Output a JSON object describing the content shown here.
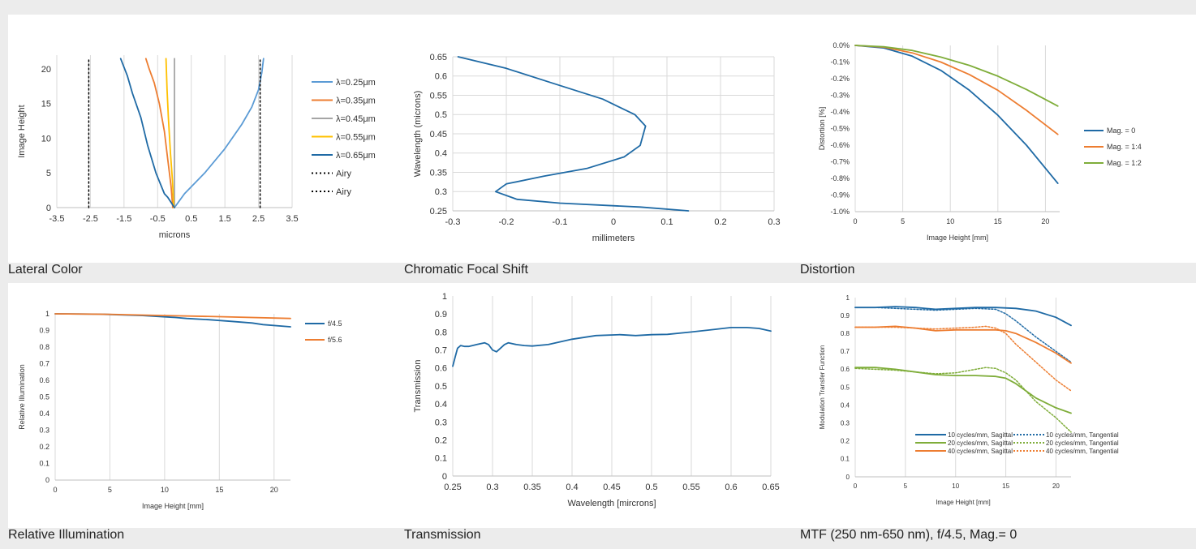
{
  "chart_data": [
    {
      "id": "lateral",
      "type": "line",
      "caption": "Lateral Color",
      "xlabel": "microns",
      "ylabel": "Image Height",
      "xlim": [
        -3.5,
        3.5
      ],
      "ylim": [
        0,
        22
      ],
      "xticks": [
        -3.5,
        -2.5,
        -1.5,
        -0.5,
        0.5,
        1.5,
        2.5,
        3.5
      ],
      "xtick_labels": [
        "-3.5",
        "-2.5",
        "-1.5",
        "-0.5",
        "0.5",
        "1.5",
        "2.5",
        "3.5"
      ],
      "yticks": [
        0,
        5,
        10,
        15,
        20
      ],
      "ytick_labels": [
        "0",
        "5",
        "10",
        "15",
        "20"
      ],
      "grid": "vertical",
      "legend": "right",
      "series": [
        {
          "name": "λ=0.25μm",
          "color": "#5b9bd5",
          "dash": "",
          "x": [
            0.0,
            0.3,
            0.9,
            1.5,
            2.0,
            2.3,
            2.5,
            2.6,
            2.65
          ],
          "y": [
            0,
            2,
            5,
            8.5,
            12,
            14.5,
            17,
            19.5,
            21.5
          ]
        },
        {
          "name": "λ=0.35μm",
          "color": "#ed7d31",
          "dash": "",
          "x": [
            -0.05,
            -0.1,
            -0.2,
            -0.3,
            -0.45,
            -0.6,
            -0.75,
            -0.85
          ],
          "y": [
            0,
            3,
            7,
            11,
            15,
            18,
            20,
            21.5
          ]
        },
        {
          "name": "λ=0.45μm",
          "color": "#a5a5a5",
          "dash": "",
          "x": [
            -0.0,
            -0.0
          ],
          "y": [
            0,
            21.5
          ]
        },
        {
          "name": "λ=0.55μm",
          "color": "#ffc000",
          "dash": "",
          "x": [
            -0.02,
            -0.06,
            -0.12,
            -0.18,
            -0.22,
            -0.25
          ],
          "y": [
            0,
            4,
            8,
            13,
            17,
            21.5
          ]
        },
        {
          "name": "λ=0.65μm",
          "color": "#1f6aa5",
          "dash": "",
          "x": [
            0.0,
            -0.2,
            -0.3,
            -0.55,
            -0.8,
            -1.0,
            -1.25,
            -1.4,
            -1.6
          ],
          "y": [
            0,
            1.5,
            2,
            5,
            9,
            13,
            16.5,
            19,
            21.5
          ]
        },
        {
          "name": "Airy",
          "color": "#000000",
          "dash": "2,3",
          "x": [
            -2.55,
            -2.55
          ],
          "y": [
            0,
            21.5
          ]
        },
        {
          "name": "Airy",
          "color": "#000000",
          "dash": "2,3",
          "x": [
            2.55,
            2.55
          ],
          "y": [
            0,
            21.5
          ]
        }
      ]
    },
    {
      "id": "focal",
      "type": "line",
      "caption": "Chromatic Focal Shift",
      "xlabel": "millimeters",
      "ylabel": "Wavelength (microns)",
      "xlim": [
        -0.3,
        0.3
      ],
      "ylim": [
        0.25,
        0.65
      ],
      "xticks": [
        -0.3,
        -0.2,
        -0.1,
        0,
        0.1,
        0.2,
        0.3
      ],
      "xtick_labels": [
        "-0.3",
        "-0.2",
        "-0.1",
        "0",
        "0.1",
        "0.2",
        "0.3"
      ],
      "yticks": [
        0.25,
        0.3,
        0.35,
        0.4,
        0.45,
        0.5,
        0.55,
        0.6,
        0.65
      ],
      "ytick_labels": [
        "0.25",
        "0.3",
        "0.35",
        "0.4",
        "0.45",
        "0.5",
        "0.55",
        "0.6",
        "0.65"
      ],
      "grid": "both",
      "legend": "none",
      "series": [
        {
          "color": "#1f6aa5",
          "dash": "",
          "x": [
            0.14,
            0.05,
            -0.1,
            -0.18,
            -0.22,
            -0.2,
            -0.13,
            -0.05,
            0.02,
            0.05,
            0.06,
            0.04,
            -0.02,
            -0.11,
            -0.2,
            -0.29
          ],
          "y": [
            0.25,
            0.26,
            0.27,
            0.28,
            0.3,
            0.32,
            0.34,
            0.36,
            0.39,
            0.42,
            0.47,
            0.5,
            0.54,
            0.58,
            0.62,
            0.65
          ]
        }
      ]
    },
    {
      "id": "distortion",
      "type": "line",
      "caption": "Distortion",
      "xlabel": "Image Height [mm]",
      "ylabel": "Distortion [%]",
      "xlim": [
        0,
        21.5
      ],
      "ylim": [
        -1.0,
        0
      ],
      "xticks": [
        0,
        5,
        10,
        15,
        20
      ],
      "xtick_labels": [
        "0",
        "5",
        "10",
        "15",
        "20"
      ],
      "yticks": [
        0,
        -0.1,
        -0.2,
        -0.3,
        -0.4,
        -0.5,
        -0.6,
        -0.7,
        -0.8,
        -0.9,
        -1.0
      ],
      "ytick_labels": [
        "0.0%",
        "-0.1%",
        "-0.2%",
        "-0.3%",
        "-0.4%",
        "-0.5%",
        "-0.6%",
        "-0.7%",
        "-0.8%",
        "-0.9%",
        "-1.0%"
      ],
      "grid": "vertical",
      "legend": "right",
      "series": [
        {
          "name": "Mag. = 0",
          "color": "#1f6aa5",
          "dash": "",
          "x": [
            0,
            3,
            6,
            9,
            12,
            15,
            18,
            21.3
          ],
          "y": [
            0,
            -0.015,
            -0.065,
            -0.15,
            -0.27,
            -0.42,
            -0.6,
            -0.83
          ]
        },
        {
          "name": "Mag. = 1:4",
          "color": "#ed7d31",
          "dash": "",
          "x": [
            0,
            3,
            6,
            9,
            12,
            15,
            18,
            21.3
          ],
          "y": [
            0,
            -0.01,
            -0.045,
            -0.1,
            -0.175,
            -0.27,
            -0.39,
            -0.535
          ]
        },
        {
          "name": "Mag. = 1:2",
          "color": "#7fad3a",
          "dash": "",
          "x": [
            0,
            3,
            6,
            9,
            12,
            15,
            18,
            21.3
          ],
          "y": [
            0,
            -0.008,
            -0.03,
            -0.07,
            -0.12,
            -0.185,
            -0.265,
            -0.365
          ]
        }
      ]
    },
    {
      "id": "illum",
      "type": "line",
      "caption": "Relative Illumination",
      "xlabel": "Image Height [mm]",
      "ylabel": "Relative Illumination",
      "xlim": [
        0,
        21.5
      ],
      "ylim": [
        0,
        1
      ],
      "xticks": [
        0,
        5,
        10,
        15,
        20
      ],
      "xtick_labels": [
        "0",
        "5",
        "10",
        "15",
        "20"
      ],
      "yticks": [
        0,
        0.1,
        0.2,
        0.3,
        0.4,
        0.5,
        0.6,
        0.7,
        0.8,
        0.9,
        1
      ],
      "ytick_labels": [
        "0",
        "0.1",
        "0.2",
        "0.3",
        "0.4",
        "0.5",
        "0.6",
        "0.7",
        "0.8",
        "0.9",
        "1"
      ],
      "grid": "vertical",
      "legend": "right",
      "series": [
        {
          "name": "f/4.5",
          "color": "#1f6aa5",
          "dash": "",
          "x": [
            0,
            4,
            8,
            10,
            11,
            12,
            14,
            16,
            18,
            19,
            21.5
          ],
          "y": [
            1,
            0.998,
            0.99,
            0.982,
            0.978,
            0.972,
            0.965,
            0.955,
            0.945,
            0.935,
            0.922
          ]
        },
        {
          "name": "f/5.6",
          "color": "#ed7d31",
          "dash": "",
          "x": [
            0,
            5,
            10,
            15,
            21.5
          ],
          "y": [
            1,
            0.997,
            0.99,
            0.983,
            0.972
          ]
        }
      ]
    },
    {
      "id": "trans",
      "type": "line",
      "caption": "Transmission",
      "xlabel": "Wavelength [mircrons]",
      "ylabel": "Transmission",
      "xlim": [
        0.25,
        0.65
      ],
      "ylim": [
        0,
        1
      ],
      "xticks": [
        0.25,
        0.3,
        0.35,
        0.4,
        0.45,
        0.5,
        0.55,
        0.6,
        0.65
      ],
      "xtick_labels": [
        "0.25",
        "0.3",
        "0.35",
        "0.4",
        "0.45",
        "0.5",
        "0.55",
        "0.6",
        "0.65"
      ],
      "yticks": [
        0,
        0.1,
        0.2,
        0.3,
        0.4,
        0.5,
        0.6,
        0.7,
        0.8,
        0.9,
        1
      ],
      "ytick_labels": [
        "0",
        "0.1",
        "0.2",
        "0.3",
        "0.4",
        "0.5",
        "0.6",
        "0.7",
        "0.8",
        "0.9",
        "1"
      ],
      "grid": "vertical",
      "legend": "none",
      "series": [
        {
          "color": "#1f6aa5",
          "dash": "",
          "x": [
            0.25,
            0.253,
            0.256,
            0.26,
            0.265,
            0.27,
            0.28,
            0.29,
            0.295,
            0.3,
            0.305,
            0.31,
            0.315,
            0.32,
            0.33,
            0.34,
            0.35,
            0.37,
            0.4,
            0.43,
            0.46,
            0.48,
            0.5,
            0.52,
            0.55,
            0.58,
            0.6,
            0.62,
            0.635,
            0.65
          ],
          "y": [
            0.61,
            0.66,
            0.71,
            0.725,
            0.72,
            0.72,
            0.73,
            0.74,
            0.73,
            0.7,
            0.69,
            0.71,
            0.73,
            0.74,
            0.73,
            0.725,
            0.722,
            0.73,
            0.76,
            0.78,
            0.785,
            0.78,
            0.785,
            0.787,
            0.8,
            0.815,
            0.825,
            0.825,
            0.82,
            0.805
          ]
        }
      ]
    },
    {
      "id": "mtf",
      "type": "line",
      "caption": "MTF (250 nm-650 nm), f/4.5, Mag.= 0",
      "xlabel": "Image Height [mm]",
      "ylabel": "Modulation Transfer Function",
      "xlim": [
        0,
        21.5
      ],
      "ylim": [
        0,
        1
      ],
      "xticks": [
        0,
        5,
        10,
        15,
        20
      ],
      "xtick_labels": [
        "0",
        "5",
        "10",
        "15",
        "20"
      ],
      "yticks": [
        0,
        0.1,
        0.2,
        0.3,
        0.4,
        0.5,
        0.6,
        0.7,
        0.8,
        0.9,
        1
      ],
      "ytick_labels": [
        "0",
        "0.1",
        "0.2",
        "0.3",
        "0.4",
        "0.5",
        "0.6",
        "0.7",
        "0.8",
        "0.9",
        "1"
      ],
      "grid": "vertical",
      "legend": "inside-bottom-right",
      "series": [
        {
          "name": "10 cycles/mm, Sagittal",
          "color": "#1f6aa5",
          "dash": "",
          "x": [
            0,
            2,
            4,
            6,
            8,
            10,
            12,
            14,
            16,
            18,
            20,
            21.5
          ],
          "y": [
            0.945,
            0.945,
            0.95,
            0.945,
            0.935,
            0.94,
            0.945,
            0.945,
            0.94,
            0.925,
            0.89,
            0.845
          ]
        },
        {
          "name": "10 cycles/mm, Tangential",
          "color": "#1f6aa5",
          "dash": "2,2",
          "x": [
            0,
            2,
            4,
            6,
            8,
            10,
            12,
            14,
            15,
            16,
            18,
            20,
            21.5
          ],
          "y": [
            0.945,
            0.945,
            0.94,
            0.935,
            0.93,
            0.935,
            0.94,
            0.935,
            0.91,
            0.87,
            0.78,
            0.7,
            0.64
          ]
        },
        {
          "name": "20 cycles/mm, Sagittal",
          "color": "#7fad3a",
          "dash": "",
          "x": [
            0,
            2,
            4,
            6,
            8,
            10,
            12,
            14,
            15,
            16,
            18,
            20,
            21.5
          ],
          "y": [
            0.61,
            0.61,
            0.6,
            0.585,
            0.57,
            0.565,
            0.565,
            0.56,
            0.55,
            0.52,
            0.44,
            0.385,
            0.355
          ]
        },
        {
          "name": "20 cycles/mm, Tangential",
          "color": "#7fad3a",
          "dash": "2,2",
          "x": [
            0,
            2,
            4,
            6,
            8,
            10,
            12,
            13,
            14,
            15,
            16,
            17,
            18,
            20,
            21.5
          ],
          "y": [
            0.605,
            0.6,
            0.595,
            0.585,
            0.575,
            0.58,
            0.6,
            0.61,
            0.605,
            0.58,
            0.54,
            0.48,
            0.42,
            0.33,
            0.25
          ]
        },
        {
          "name": "40 cycles/mm, Sagittal",
          "color": "#ed7d31",
          "dash": "",
          "x": [
            0,
            2,
            4,
            6,
            8,
            10,
            12,
            14,
            15,
            16,
            18,
            20,
            21.5
          ],
          "y": [
            0.835,
            0.835,
            0.84,
            0.83,
            0.815,
            0.82,
            0.82,
            0.82,
            0.815,
            0.8,
            0.75,
            0.69,
            0.635
          ]
        },
        {
          "name": "40 cycles/mm, Tangential",
          "color": "#ed7d31",
          "dash": "2,2",
          "x": [
            0,
            2,
            4,
            6,
            8,
            10,
            12,
            13,
            14,
            15,
            16,
            18,
            20,
            21.5
          ],
          "y": [
            0.835,
            0.835,
            0.835,
            0.83,
            0.825,
            0.83,
            0.835,
            0.84,
            0.83,
            0.8,
            0.74,
            0.64,
            0.54,
            0.48
          ]
        }
      ]
    }
  ]
}
